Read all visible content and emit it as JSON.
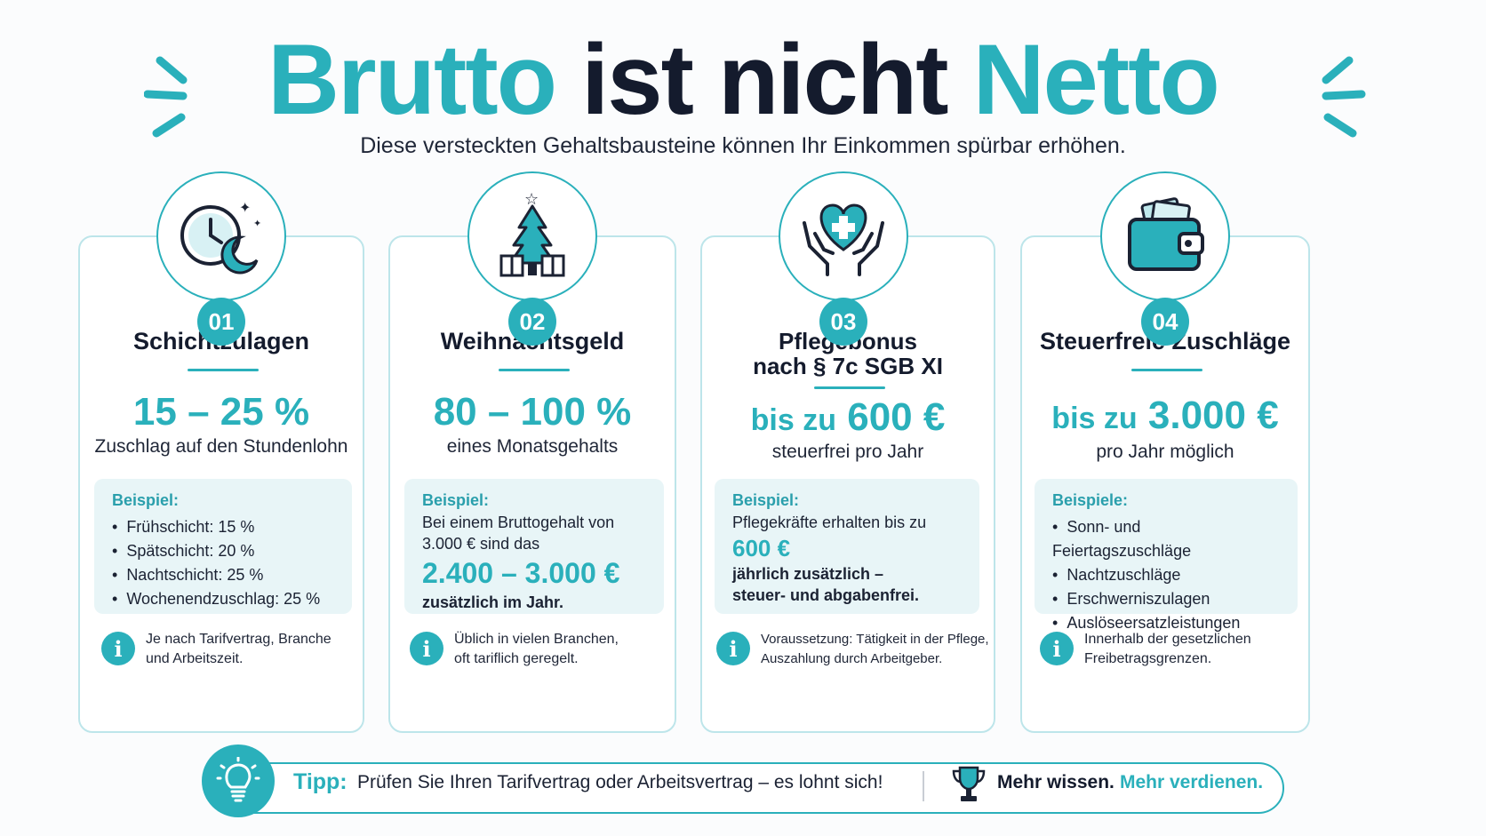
{
  "header": {
    "title_part1": "Brutto",
    "title_part2": "ist nicht",
    "title_part3": "Netto",
    "subtitle": "Diese versteckten Gehaltsbausteine können Ihr Einkommen spürbar erhöhen."
  },
  "colors": {
    "accent": "#2ab0bb",
    "dark": "#141b2d",
    "light_box": "#e8f5f7"
  },
  "cards": [
    {
      "icon": "clock-moon-icon",
      "number": "01",
      "title": "Schichtzulagen",
      "value": "15 – 25 %",
      "value_desc": "Zuschlag auf den Stundenlohn",
      "example_label": "Beispiel:",
      "example_items": [
        "Frühschicht:  15 %",
        "Spätschicht:  20 %",
        "Nachtschicht:   25 %",
        "Wochenendzuschlag:  25 %"
      ],
      "note": "Je nach Tarifvertrag, Branche und Arbeitszeit."
    },
    {
      "icon": "christmas-tree-gifts-icon",
      "number": "02",
      "title": "Weihnachtsgeld",
      "value": "80 – 100 %",
      "value_desc": "eines Monatsgehalts",
      "example_label": "Beispiel:",
      "example_line1": "Bei einem Bruttogehalt von 3.000 € sind das",
      "example_value": "2.400 – 3.000 €",
      "example_line2": "zusätzlich im Jahr.",
      "note": "Üblich in vielen Branchen, oft tariflich geregelt."
    },
    {
      "icon": "hands-heart-cross-icon",
      "number": "03",
      "title_line1": "Pflegebonus",
      "title_line2": "nach § 7c SGB XI",
      "value_prefix": "bis zu",
      "value": "600 €",
      "value_desc": "steuerfrei pro Jahr",
      "example_label": "Beispiel:",
      "example_line1": "Pflegekräfte erhalten bis zu",
      "example_value": "600 €",
      "example_line2": "jährlich zusätzlich – steuer- und abgabenfrei.",
      "note": "Voraussetzung: Tätigkeit in der Pflege, Auszahlung durch Arbeitgeber."
    },
    {
      "icon": "wallet-icon",
      "number": "04",
      "title": "Steuerfreie Zuschläge",
      "value_prefix": "bis zu",
      "value": "3.000 €",
      "value_desc": "pro Jahr möglich",
      "example_label": "Beispiele:",
      "example_items": [
        "Sonn- und Feiertagszuschläge",
        "Nachtzuschläge",
        "Erschwerniszulagen",
        "Auslöseersatzleistungen"
      ],
      "note": "Innerhalb der gesetzlichen Freibetragsgrenzen."
    }
  ],
  "tip": {
    "label": "Tipp:",
    "text": "Prüfen Sie Ihren Tarifvertrag oder Arbeitsvertrag – es lohnt sich!",
    "more_dark": "Mehr wissen.",
    "more_teal": "Mehr verdienen."
  }
}
